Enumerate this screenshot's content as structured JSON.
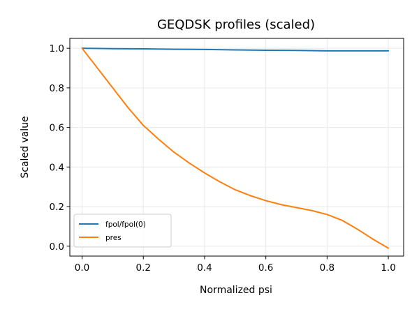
{
  "chart_data": {
    "type": "line",
    "title": "GEQDSK profiles (scaled)",
    "xlabel": "Normalized psi",
    "ylabel": "Scaled value",
    "xlim": [
      -0.04,
      1.05
    ],
    "ylim": [
      -0.05,
      1.05
    ],
    "xticks": [
      0.0,
      0.2,
      0.4,
      0.6,
      0.8,
      1.0
    ],
    "xtick_labels": [
      "0.0",
      "0.2",
      "0.4",
      "0.6",
      "0.8",
      "1.0"
    ],
    "yticks": [
      0.0,
      0.2,
      0.4,
      0.6,
      0.8,
      1.0
    ],
    "ytick_labels": [
      "0.0",
      "0.2",
      "0.4",
      "0.6",
      "0.8",
      "1.0"
    ],
    "grid": true,
    "legend": "lower-left",
    "series": [
      {
        "name": "fpol/fpol(0)",
        "color": "#1f77b4",
        "x": [
          0.0,
          0.1,
          0.2,
          0.3,
          0.4,
          0.5,
          0.6,
          0.7,
          0.8,
          0.9,
          1.0
        ],
        "y": [
          1.0,
          0.998,
          0.997,
          0.995,
          0.994,
          0.992,
          0.99,
          0.989,
          0.987,
          0.987,
          0.987
        ]
      },
      {
        "name": "pres",
        "color": "#ff7f0e",
        "x": [
          0.0,
          0.05,
          0.1,
          0.15,
          0.2,
          0.25,
          0.3,
          0.35,
          0.4,
          0.45,
          0.5,
          0.55,
          0.6,
          0.65,
          0.7,
          0.75,
          0.8,
          0.85,
          0.9,
          0.95,
          1.0
        ],
        "y": [
          1.0,
          0.9,
          0.8,
          0.7,
          0.61,
          0.54,
          0.475,
          0.42,
          0.37,
          0.325,
          0.285,
          0.255,
          0.23,
          0.21,
          0.195,
          0.18,
          0.16,
          0.13,
          0.085,
          0.035,
          -0.01
        ]
      }
    ]
  }
}
